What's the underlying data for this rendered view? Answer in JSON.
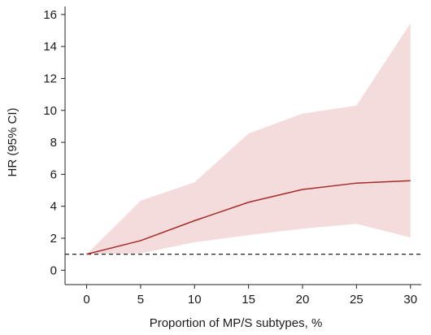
{
  "chart_data": {
    "type": "line",
    "title": "",
    "xlabel": "Proportion of MP/S subtypes, %",
    "ylabel": "HR (95% CI)",
    "xlim": [
      -2,
      31
    ],
    "ylim": [
      -0.9,
      16.5
    ],
    "x_ticks": [
      0,
      5,
      10,
      15,
      20,
      25,
      30
    ],
    "y_ticks": [
      0,
      2,
      4,
      6,
      8,
      10,
      12,
      14,
      16
    ],
    "grid": false,
    "legend": "none",
    "reference_line": {
      "y": 1,
      "style": "dashed",
      "color": "#222222"
    },
    "series": [
      {
        "x": [
          0,
          5,
          10,
          15,
          20,
          25,
          30
        ],
        "y": [
          1.0,
          1.85,
          3.1,
          4.25,
          5.05,
          5.45,
          5.6
        ],
        "ci_lower": [
          1.0,
          1.05,
          1.75,
          2.2,
          2.6,
          2.9,
          2.05
        ],
        "ci_upper": [
          1.0,
          4.35,
          5.5,
          8.55,
          9.8,
          10.3,
          15.45
        ],
        "color": "#a52a2a",
        "band_color": "#f4dcdc"
      }
    ]
  }
}
